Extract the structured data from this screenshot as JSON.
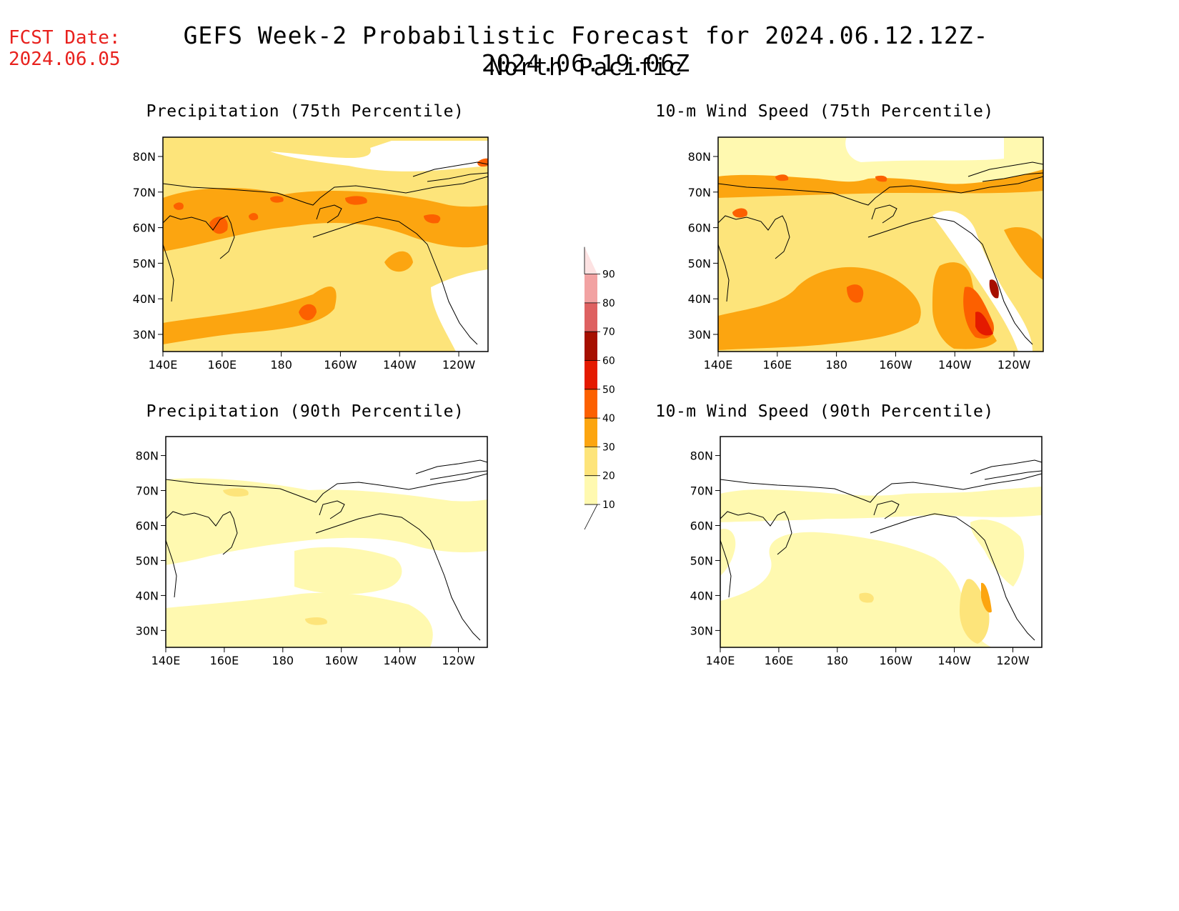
{
  "header": {
    "fcst_label": "FCST Date:",
    "fcst_date": "2024.06.05",
    "title": "GEFS Week-2 Probabilistic Forecast for 2024.06.12.12Z-2024.06.19.06Z",
    "region": "North Pacific"
  },
  "panels": [
    {
      "id": "precip75",
      "title": "Precipitation (75th Percentile)"
    },
    {
      "id": "wind75",
      "title": "10-m Wind Speed (75th Percentile)"
    },
    {
      "id": "precip90",
      "title": "Precipitation (90th Percentile)"
    },
    {
      "id": "wind90",
      "title": "10-m Wind Speed (90th Percentile)"
    }
  ],
  "axes": {
    "lat_labels": [
      "80N",
      "70N",
      "60N",
      "50N",
      "40N",
      "30N"
    ],
    "lon_labels": [
      "140E",
      "160E",
      "180",
      "160W",
      "140W",
      "120W"
    ]
  },
  "colorbar": {
    "levels": [
      "10",
      "20",
      "30",
      "40",
      "50",
      "60",
      "70",
      "80",
      "90"
    ],
    "colors": [
      "#fff9b0",
      "#fde47a",
      "#fca510",
      "#fc6000",
      "#e41a00",
      "#a60f00",
      "#de6161",
      "#f2a2a2",
      "#fde2e2"
    ]
  }
}
